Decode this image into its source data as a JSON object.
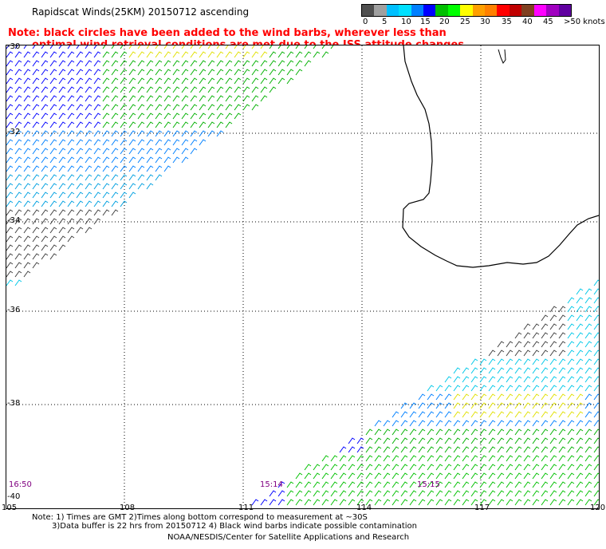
{
  "header": {
    "title": "Rapidscat Winds(25KM) 20150712 ascending",
    "note_line1": "Note: black circles have been added to the wind barbs, wherever less than",
    "note_line2": "optimal wind retrieval conditions are met due to the ISS attitude changes."
  },
  "legend": {
    "labels": [
      "0",
      "5",
      "10",
      "15",
      "20",
      "25",
      "30",
      "35",
      "40",
      "45",
      ">50 knots"
    ],
    "colors": [
      "#505050",
      "#a0a0a0",
      "#00c0ff",
      "#00e0ff",
      "#0080ff",
      "#0000ff",
      "#00c000",
      "#00ff00",
      "#ffff00",
      "#ffa000",
      "#ff8000",
      "#ff0000",
      "#c00000",
      "#804020",
      "#ff00ff",
      "#a000c0",
      "#6000a0"
    ]
  },
  "map": {
    "lat_labels": [
      "-30",
      "-32",
      "-34",
      "-36",
      "-38",
      "-40"
    ],
    "lon_labels": [
      "105",
      "108",
      "111",
      "114",
      "117",
      "120"
    ],
    "time_labels": [
      "16:50",
      "15:14",
      "15:15"
    ]
  },
  "footer": {
    "line1": "Note: 1) Times are GMT 2)Times along bottom correspond to measurement at ~30S",
    "line2": "3)Data buffer is 22 hrs from 20150712 4) Black wind barbs indicate possible contamination",
    "line3": "NOAA/NESDIS/Center for Satellite Applications and Research"
  }
}
